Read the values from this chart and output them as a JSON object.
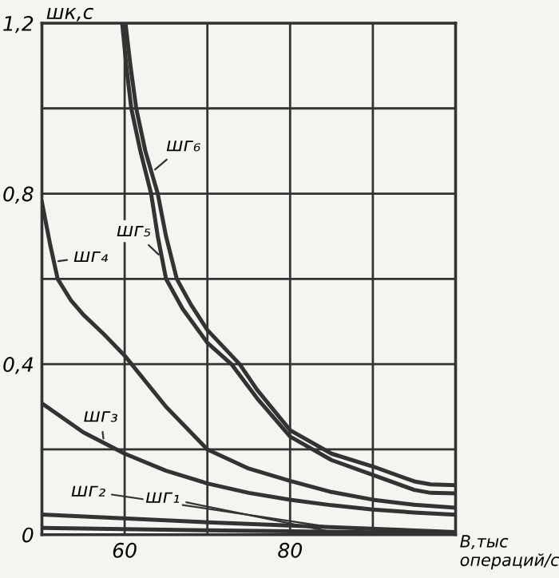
{
  "chart_data": {
    "type": "line",
    "ylabel": "шк,с",
    "xlabel": "В,тыс\nопераций/с",
    "xlim": [
      50,
      100
    ],
    "ylim": [
      0,
      1.2
    ],
    "xticks": [
      {
        "value": 50,
        "label": null
      },
      60,
      {
        "value": 70,
        "label": null
      },
      80,
      {
        "value": 90,
        "label": null
      },
      {
        "value": 100,
        "label": null
      }
    ],
    "yticks": [
      {
        "value": 0,
        "label": "0"
      },
      {
        "value": 0.2,
        "label": null
      },
      {
        "value": 0.4,
        "label": "0,4"
      },
      {
        "value": 0.6,
        "label": null
      },
      {
        "value": 0.8,
        "label": "0,8"
      },
      {
        "value": 1.0,
        "label": null
      },
      {
        "value": 1.2,
        "label": "1,2"
      }
    ],
    "grid": true,
    "marker": "none",
    "line_style": "solid",
    "series": [
      {
        "name": "шг₆",
        "color": "#333333",
        "x": [
          60.1,
          60.7,
          61.4,
          62.5,
          64,
          65,
          66.3,
          68,
          70,
          73.9,
          76,
          80,
          85,
          90,
          95,
          97,
          100
        ],
        "values": [
          1.2,
          1.1,
          1.0,
          0.9,
          0.8,
          0.7,
          0.6,
          0.54,
          0.48,
          0.4,
          0.34,
          0.245,
          0.19,
          0.16,
          0.125,
          0.118,
          0.116
        ]
      },
      {
        "name": "шг₅",
        "color": "#333333",
        "x": [
          59.7,
          60.2,
          60.8,
          61.9,
          63.2,
          64,
          65,
          67,
          70,
          72.9,
          76,
          80,
          85,
          90,
          95,
          97,
          100
        ],
        "values": [
          1.2,
          1.1,
          1.0,
          0.9,
          0.8,
          0.7,
          0.6,
          0.53,
          0.45,
          0.4,
          0.32,
          0.23,
          0.175,
          0.14,
          0.105,
          0.098,
          0.097
        ]
      },
      {
        "name": "шг₄",
        "color": "#333333",
        "x": [
          50,
          51,
          51.9,
          53.5,
          55,
          57.5,
          60,
          65,
          70,
          75,
          80,
          85,
          90,
          95,
          100
        ],
        "values": [
          0.78,
          0.68,
          0.6,
          0.55,
          0.516,
          0.47,
          0.42,
          0.3,
          0.2,
          0.155,
          0.126,
          0.1,
          0.082,
          0.07,
          0.063
        ]
      },
      {
        "name": "шг₃",
        "color": "#333333",
        "x": [
          50,
          55,
          60,
          65,
          70,
          75,
          80,
          85,
          90,
          95,
          100
        ],
        "values": [
          0.308,
          0.24,
          0.19,
          0.15,
          0.12,
          0.098,
          0.082,
          0.069,
          0.059,
          0.052,
          0.047
        ]
      },
      {
        "name": "шг₂",
        "color": "#333333",
        "x": [
          50,
          70,
          100
        ],
        "values": [
          0.047,
          0.029,
          0.006
        ]
      },
      {
        "name": "шг₁",
        "color": "#333333",
        "x": [
          50,
          70,
          100
        ],
        "values": [
          0.016,
          0.01,
          0.003
        ]
      }
    ]
  }
}
